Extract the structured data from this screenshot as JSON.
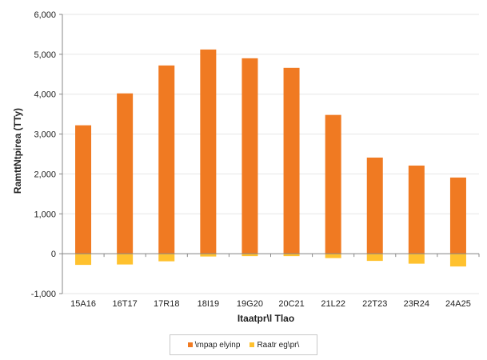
{
  "chart_data": {
    "type": "bar",
    "categories": [
      "15A16",
      "16T17",
      "17R18",
      "18I19",
      "19G20",
      "20C21",
      "21L22",
      "22T23",
      "23R24",
      "24A25"
    ],
    "series": [
      {
        "name": "\\mpap elyinp",
        "color": "#f07a22",
        "values": [
          3220,
          4020,
          4720,
          5120,
          4900,
          4660,
          3480,
          2410,
          2210,
          1910
        ]
      },
      {
        "name": "Raatr eg\\pr\\",
        "color": "#ffc12e",
        "values": [
          -280,
          -270,
          -190,
          -70,
          -60,
          -60,
          -110,
          -180,
          -250,
          -320
        ]
      }
    ],
    "xlabel": "Itaatpr\\l Tlao",
    "ylabel": "RamttNtpirea (TTy)",
    "ylim": [
      -1000,
      6000
    ],
    "yticks": [
      -1000,
      0,
      1000,
      2000,
      3000,
      4000,
      5000,
      6000
    ],
    "ytick_labels": [
      "-1,000",
      "0",
      "1,000",
      "2,000",
      "3,000",
      "4,000",
      "5,000",
      "6,000"
    ],
    "grid": true,
    "legend_position": "bottom"
  }
}
